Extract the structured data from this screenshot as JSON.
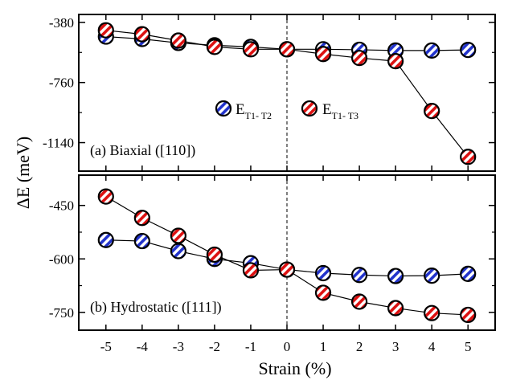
{
  "colors": {
    "blue": "#2233cc",
    "red": "#dd1111",
    "line": "#000000"
  },
  "chart_data": [
    {
      "type": "line",
      "panel_label": "(a) Biaxial ([110])",
      "x": [
        -5,
        -4,
        -3,
        -2,
        -1,
        0,
        1,
        2,
        3,
        4,
        5
      ],
      "ylim": [
        -1320,
        -330
      ],
      "yticks": [
        -380,
        -760,
        -1140
      ],
      "ytick_labels": [
        "-380",
        "-760",
        "-1140"
      ],
      "grid": false,
      "reference_line_x": 0,
      "legend_position": "center-right",
      "series": [
        {
          "name_main": "E",
          "name_sub": "T1- T2",
          "color_key": "blue",
          "values": [
            -470,
            -485,
            -510,
            -525,
            -535,
            -550,
            -550,
            -553,
            -558,
            -558,
            -554
          ]
        },
        {
          "name_main": "E",
          "name_sub": "T1- T3",
          "color_key": "red",
          "values": [
            -430,
            -455,
            -495,
            -535,
            -550,
            -550,
            -580,
            -605,
            -625,
            -940,
            -1230
          ]
        }
      ]
    },
    {
      "type": "line",
      "panel_label": "(b) Hydrostatic ([111])",
      "x": [
        -5,
        -4,
        -3,
        -2,
        -1,
        0,
        1,
        2,
        3,
        4,
        5
      ],
      "ylim": [
        -800,
        -365
      ],
      "yticks": [
        -450,
        -600,
        -750
      ],
      "ytick_labels": [
        "-450",
        "-600",
        "-750"
      ],
      "grid": false,
      "reference_line_x": 0,
      "series": [
        {
          "color_key": "blue",
          "values": [
            -547,
            -550,
            -578,
            -600,
            -612,
            -630,
            -640,
            -645,
            -648,
            -647,
            -642
          ]
        },
        {
          "color_key": "red",
          "values": [
            -425,
            -485,
            -535,
            -588,
            -632,
            -630,
            -695,
            -720,
            -738,
            -752,
            -757
          ]
        }
      ]
    }
  ],
  "axes": {
    "xlabel": "Strain (%)",
    "ylabel": "ΔE  (meV)",
    "xticks": [
      -5,
      -4,
      -3,
      -2,
      -1,
      0,
      1,
      2,
      3,
      4,
      5
    ],
    "xtick_labels": [
      "-5",
      "-4",
      "-3",
      "-2",
      "-1",
      "0",
      "1",
      "2",
      "3",
      "4",
      "5"
    ]
  }
}
